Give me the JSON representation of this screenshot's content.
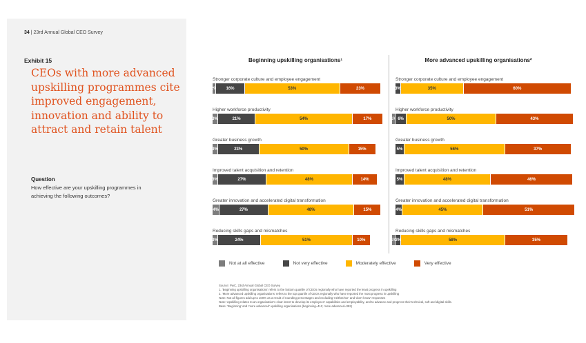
{
  "header": {
    "page_number": "34",
    "separator": "|",
    "publication": "23rd Annual Global CEO Survey"
  },
  "exhibit": {
    "label": "Exhibit 15",
    "title": "CEOs with more advanced upskilling programmes cite improved engagement, innovation and ability to attract and retain talent"
  },
  "question": {
    "heading": "Question",
    "text": "How effective are your upskilling programmes in achieving the following outcomes?"
  },
  "chart_data": [
    {
      "type": "bar",
      "orientation": "horizontal",
      "stacked": true,
      "title": "Beginning upskilling organisations¹",
      "categories": [
        "Stronger corporate culture and employee engagement",
        "Higher workforce productivity",
        "Greater business growth",
        "Improved talent acquisition and retention",
        "Greater innovation and accelerated digital transformation",
        "Reducing skills gaps and mismatches"
      ],
      "series": [
        {
          "name": "Not at all effective",
          "color": "#7d7d7d",
          "values": [
            2,
            3,
            3,
            3,
            4,
            3
          ]
        },
        {
          "name": "Not very effective",
          "color": "#464646",
          "values": [
            16,
            21,
            23,
            27,
            27,
            24
          ]
        },
        {
          "name": "Moderately effective",
          "color": "#ffb600",
          "values": [
            53,
            54,
            50,
            48,
            48,
            51
          ]
        },
        {
          "name": "Very effective",
          "color": "#d04a02",
          "values": [
            23,
            17,
            15,
            14,
            15,
            10
          ]
        }
      ]
    },
    {
      "type": "bar",
      "orientation": "horizontal",
      "stacked": true,
      "title": "More advanced upskilling organisations²",
      "categories": [
        "Stronger corporate culture and employee engagement",
        "Higher workforce productivity",
        "Greater business growth",
        "Improved talent acquisition and retention",
        "Greater innovation and accelerated digital transformation",
        "Reducing skills gaps and mismatches"
      ],
      "series": [
        {
          "name": "Not at all effective",
          "color": "#7d7d7d",
          "values": [
            0,
            1,
            0,
            0,
            0,
            1
          ]
        },
        {
          "name": "Not very effective",
          "color": "#464646",
          "values": [
            3,
            6,
            5,
            5,
            4,
            3
          ]
        },
        {
          "name": "Moderately effective",
          "color": "#ffb600",
          "values": [
            35,
            50,
            56,
            48,
            45,
            58
          ]
        },
        {
          "name": "Very effective",
          "color": "#d04a02",
          "values": [
            60,
            43,
            37,
            46,
            51,
            35
          ]
        }
      ]
    }
  ],
  "legend": [
    "Not at all effective",
    "Not very effective",
    "Moderately effective",
    "Very effective"
  ],
  "notes": [
    "Source: PwC, 23rd Annual Global CEO Survey",
    "1. 'Beginning upskilling organisations' refers to the bottom quartile of CEOs regionally who have reported the least progress in upskilling",
    "2. 'More advanced upskilling organisations' refers to the top quartile of CEOs regionally who have reported the most progress in upskilling",
    "Note: Not all figures add up to 100% as a result of rounding percentages and excluding 'neither/nor' and 'don't know' responses",
    "Note: Upskilling relates to an organisation's clear intent to develop its employees' capabilities and employability, and to advance and progress their technical, soft and digital skills.",
    "Base: 'Beginning' and 'more advanced' upskilling organisations (beginning=411; more advanced=352)"
  ]
}
